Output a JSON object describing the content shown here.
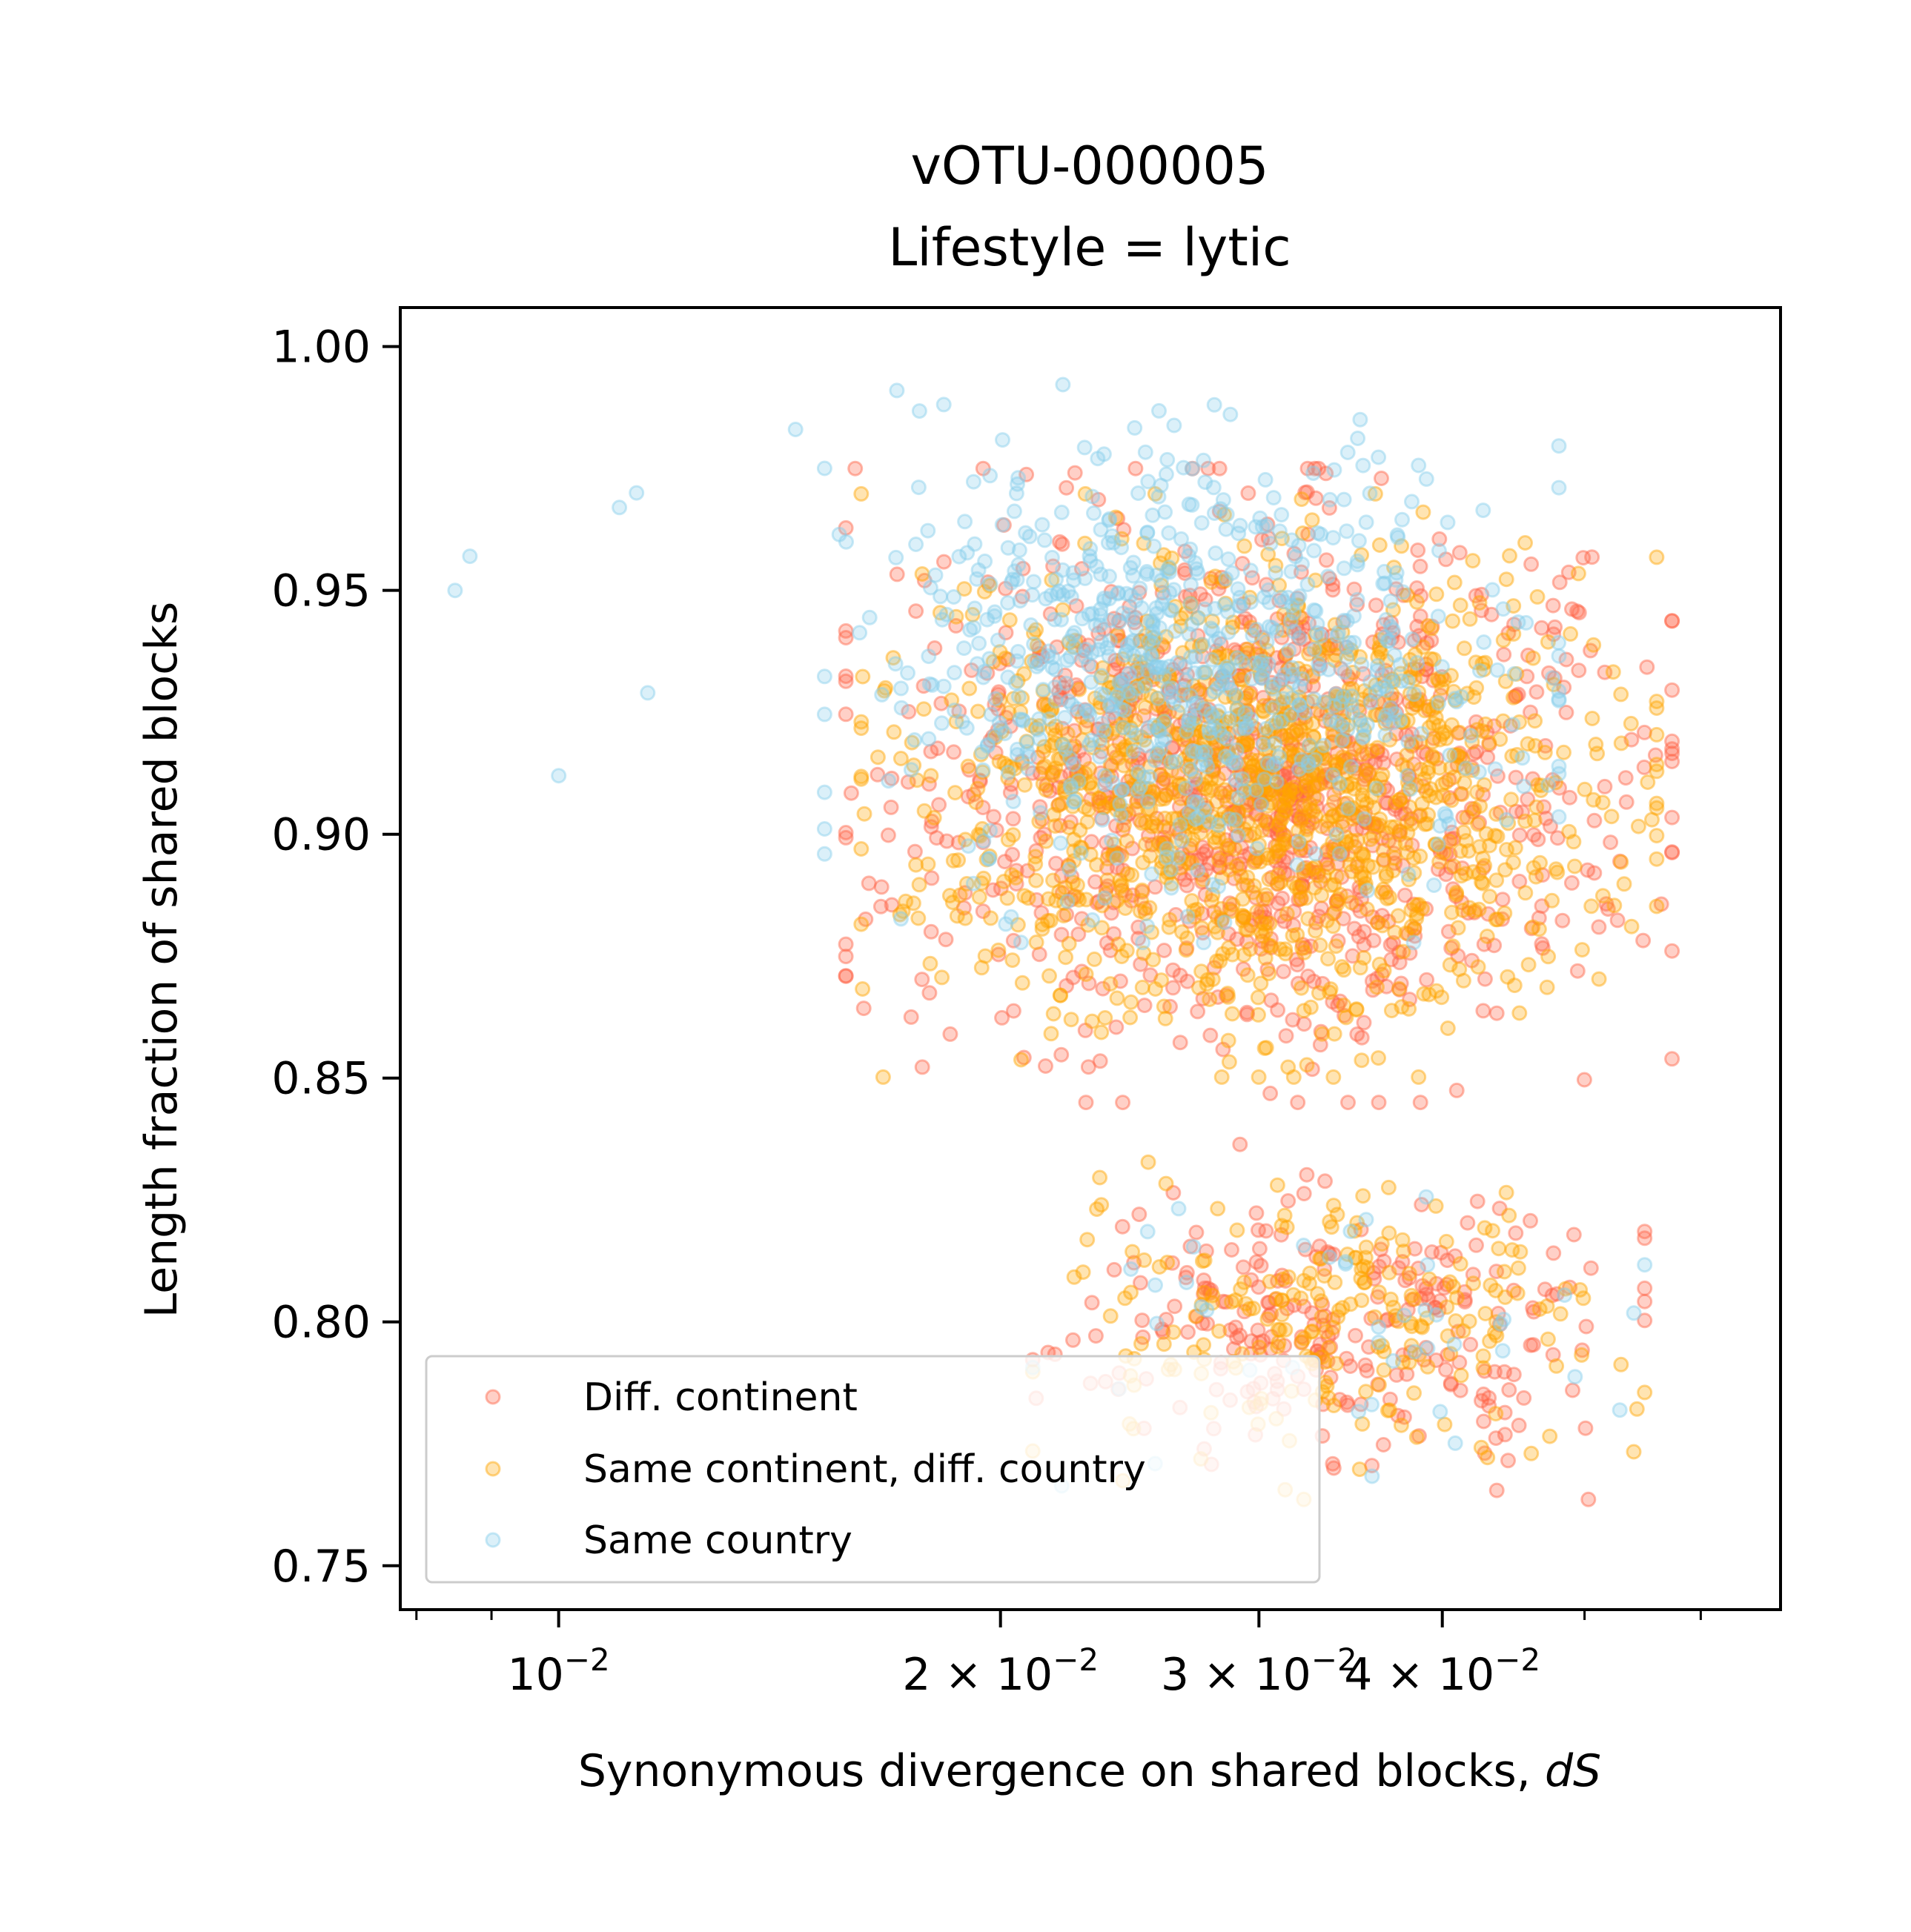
{
  "chart_data": {
    "type": "scatter",
    "title": "vOTU-000005",
    "subtitle": "Lifestyle = lytic",
    "xlabel_prefix": "Synonymous divergence on shared blocks, ",
    "xlabel_italic": "dS",
    "ylabel": "Length fraction of shared blocks",
    "x_scale": "log",
    "xlim": [
      0.0078,
      0.068
    ],
    "ylim": [
      0.741,
      1.008
    ],
    "grid": false,
    "legend_placement": "lower-left",
    "x_major_ticks": [
      {
        "value": 0.01,
        "base": "10",
        "exp": "−2"
      },
      {
        "value": 0.02,
        "base": "2 × 10",
        "exp": "−2"
      },
      {
        "value": 0.03,
        "base": "3 × 10",
        "exp": "−2"
      },
      {
        "value": 0.04,
        "base": "4 × 10",
        "exp": "−2"
      }
    ],
    "x_minor_ticks": [
      0.008,
      0.009,
      0.05,
      0.06
    ],
    "y_ticks": [
      "0.75",
      "0.80",
      "0.85",
      "0.90",
      "0.95",
      "1.00"
    ],
    "series": [
      {
        "name": "Diff. continent",
        "color": "#ff6347",
        "clusters": [
          {
            "x_center": 0.03,
            "x_spread": 0.27,
            "y_center": 0.91,
            "y_spread": 0.025,
            "count": 1100
          },
          {
            "x_center": 0.034,
            "x_spread": 0.2,
            "y_center": 0.8,
            "y_spread": 0.014,
            "count": 260
          }
        ]
      },
      {
        "name": "Same continent, diff. country",
        "color": "#ffa500",
        "clusters": [
          {
            "x_center": 0.03,
            "x_spread": 0.26,
            "y_center": 0.91,
            "y_spread": 0.023,
            "count": 1300
          },
          {
            "x_center": 0.034,
            "x_spread": 0.2,
            "y_center": 0.8,
            "y_spread": 0.014,
            "count": 230
          }
        ]
      },
      {
        "name": "Same country",
        "color": "#87ceeb",
        "clusters": [
          {
            "x_center": 0.027,
            "x_spread": 0.24,
            "y_center": 0.935,
            "y_spread": 0.022,
            "count": 750
          },
          {
            "x_center": 0.034,
            "x_spread": 0.2,
            "y_center": 0.8,
            "y_spread": 0.013,
            "count": 45
          }
        ],
        "extra_points": [
          [
            0.0085,
            0.95
          ],
          [
            0.0087,
            0.957
          ],
          [
            0.01,
            0.912
          ],
          [
            0.011,
            0.967
          ],
          [
            0.0113,
            0.97
          ],
          [
            0.0115,
            0.929
          ],
          [
            0.0145,
            0.983
          ],
          [
            0.017,
            0.991
          ]
        ]
      }
    ]
  }
}
